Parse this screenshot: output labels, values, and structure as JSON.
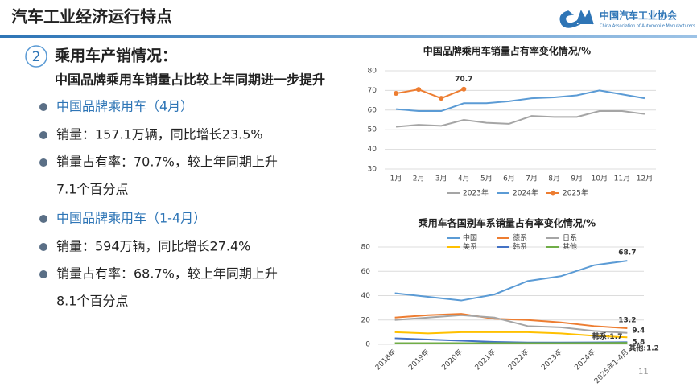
{
  "header": {
    "title": "汽车工业经济运行特点",
    "logo_cn": "中国汽车工业协会",
    "logo_en": "China Association of Automobile Manufacturers"
  },
  "section": {
    "number": "2",
    "title": "乘用车产销情况：",
    "subtitle": "中国品牌乘用车销量占比较上年同期进一步提升"
  },
  "groups": [
    {
      "heading": "中国品牌乘用车（4月）",
      "items": [
        [
          "销量：157.1万辆，同比增长23.5%"
        ],
        [
          "销量占有率：70.7%，较上年同期上升",
          "7.1个百分点"
        ]
      ]
    },
    {
      "heading": "中国品牌乘用车（1-4月）",
      "items": [
        [
          "销量：594万辆，同比增长27.4%"
        ],
        [
          "销量占有率：68.7%，较上年同期上升",
          "8.1个百分点"
        ]
      ]
    }
  ],
  "page_number": "11",
  "chart_data": [
    {
      "type": "line",
      "title": "中国品牌乘用车销量占有率变化情况/%",
      "categories": [
        "1月",
        "2月",
        "3月",
        "4月",
        "5月",
        "6月",
        "7月",
        "8月",
        "9月",
        "10月",
        "11月",
        "12月"
      ],
      "series": [
        {
          "name": "2023年",
          "color": "#a5a5a5",
          "values": [
            51.5,
            52.5,
            52,
            55,
            53.5,
            53,
            57,
            56.5,
            56.5,
            59.5,
            59.5,
            58
          ]
        },
        {
          "name": "2024年",
          "color": "#5b9bd5",
          "values": [
            60.5,
            59.5,
            59.5,
            63.5,
            63.5,
            64.5,
            66,
            66.5,
            67.5,
            70,
            68,
            66
          ]
        },
        {
          "name": "2025年",
          "color": "#ed7d31",
          "marker": true,
          "values": [
            68.5,
            70.5,
            66,
            70.7,
            null,
            null,
            null,
            null,
            null,
            null,
            null,
            null
          ],
          "value_labels": [
            null,
            null,
            null,
            "70.7",
            null,
            null,
            null,
            null,
            null,
            null,
            null,
            null
          ]
        }
      ],
      "ylim": [
        30,
        80
      ],
      "yticks": [
        30,
        40,
        50,
        60,
        70,
        80
      ],
      "grid": true,
      "legend": "bottom"
    },
    {
      "type": "line",
      "title": "乘用车各国别车系销量占有率变化情况/%",
      "categories": [
        "2018年",
        "2019年",
        "2020年",
        "2021年",
        "2022年",
        "2023年",
        "2024年",
        "2025年1-4月"
      ],
      "series": [
        {
          "name": "中国",
          "color": "#5b9bd5",
          "values": [
            42,
            39,
            36,
            41,
            52,
            56,
            65,
            68.7
          ],
          "value_labels": [
            null,
            null,
            null,
            null,
            null,
            null,
            null,
            "68.7"
          ]
        },
        {
          "name": "德系",
          "color": "#ed7d31",
          "values": [
            22,
            24,
            25,
            21,
            20,
            18,
            15,
            13.2
          ],
          "value_labels": [
            null,
            null,
            null,
            null,
            null,
            null,
            null,
            "13.2"
          ]
        },
        {
          "name": "日系",
          "color": "#a5a5a5",
          "values": [
            20,
            22,
            24,
            22,
            15,
            14,
            11,
            9.4
          ],
          "value_labels": [
            null,
            null,
            null,
            null,
            null,
            null,
            null,
            "9.4"
          ]
        },
        {
          "name": "美系",
          "color": "#ffc000",
          "values": [
            10,
            9,
            10,
            10,
            10,
            9,
            7,
            5.8
          ],
          "value_labels": [
            null,
            null,
            null,
            null,
            null,
            null,
            null,
            "5.8"
          ]
        },
        {
          "name": "韩系",
          "color": "#4472c4",
          "values": [
            5,
            4,
            3,
            2,
            1.5,
            1.5,
            1.6,
            1.7
          ],
          "value_labels": [
            null,
            null,
            null,
            null,
            null,
            null,
            null,
            "韩系:1.7"
          ]
        },
        {
          "name": "其他",
          "color": "#70ad47",
          "values": [
            1,
            1,
            1,
            1,
            1,
            1,
            1.1,
            1.2
          ],
          "value_labels": [
            null,
            null,
            null,
            null,
            null,
            null,
            null,
            "其他:1.2"
          ]
        }
      ],
      "ylim": [
        0,
        80
      ],
      "yticks": [
        0,
        20,
        40,
        60,
        80
      ],
      "grid": true,
      "legend": "top"
    }
  ]
}
